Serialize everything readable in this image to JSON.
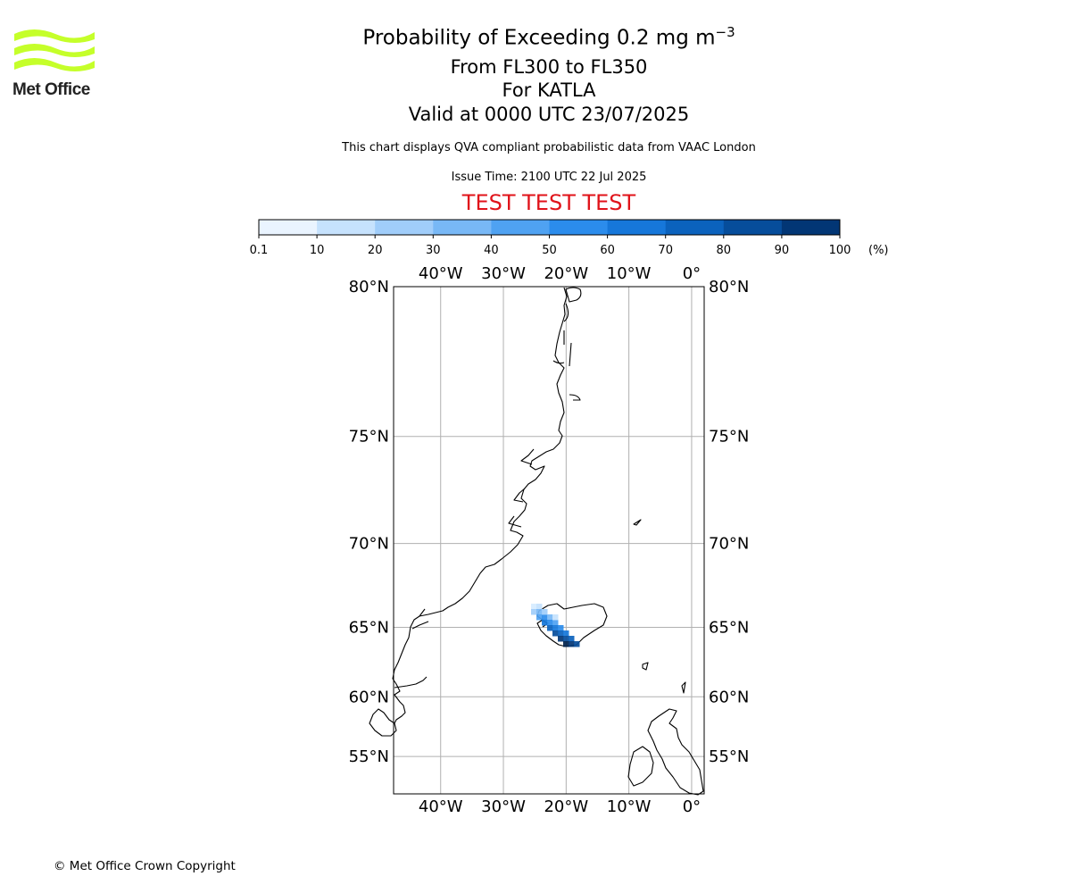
{
  "logo": {
    "text": "Met Office",
    "color": "#c5ff2a"
  },
  "header": {
    "title": "Probability of Exceeding 0.2 mg m",
    "title_exponent": "−3",
    "level_range": "From FL300 to FL350",
    "volcano": "For KATLA",
    "valid_time": "Valid at 0000 UTC 23/07/2025",
    "note": "This chart displays QVA compliant probabilistic data from VAAC London",
    "issue_time": "Issue Time: 2100 UTC 22 Jul 2025",
    "test_banner": "TEST TEST TEST",
    "test_color": "#e0131a"
  },
  "colorbar": {
    "ticks": [
      "0.1",
      "10",
      "20",
      "30",
      "40",
      "50",
      "60",
      "70",
      "80",
      "90",
      "100"
    ],
    "unit": "(%)",
    "colors": [
      "#eaf4ff",
      "#c6e2fd",
      "#a0cdfa",
      "#78b8f6",
      "#4fa2f2",
      "#2b8cec",
      "#1677da",
      "#0b62bd",
      "#064d9b",
      "#023675",
      "#00224d"
    ]
  },
  "map": {
    "lon_ticks": [
      {
        "label": "40°W",
        "lon": -40
      },
      {
        "label": "30°W",
        "lon": -30
      },
      {
        "label": "20°W",
        "lon": -20
      },
      {
        "label": "10°W",
        "lon": -10
      },
      {
        "label": "0°",
        "lon": 0
      }
    ],
    "lat_ticks": [
      {
        "label": "80°N",
        "lat": 80
      },
      {
        "label": "75°N",
        "lat": 75
      },
      {
        "label": "70°N",
        "lat": 70
      },
      {
        "label": "65°N",
        "lat": 65
      },
      {
        "label": "60°N",
        "lat": 60
      },
      {
        "label": "55°N",
        "lat": 55
      }
    ],
    "extent": {
      "lon_min": -47.5,
      "lon_max": 2,
      "lat_min": 51.5,
      "lat_max": 80
    },
    "grid": true
  },
  "footer": {
    "copyright": "© Met Office Crown Copyright"
  }
}
